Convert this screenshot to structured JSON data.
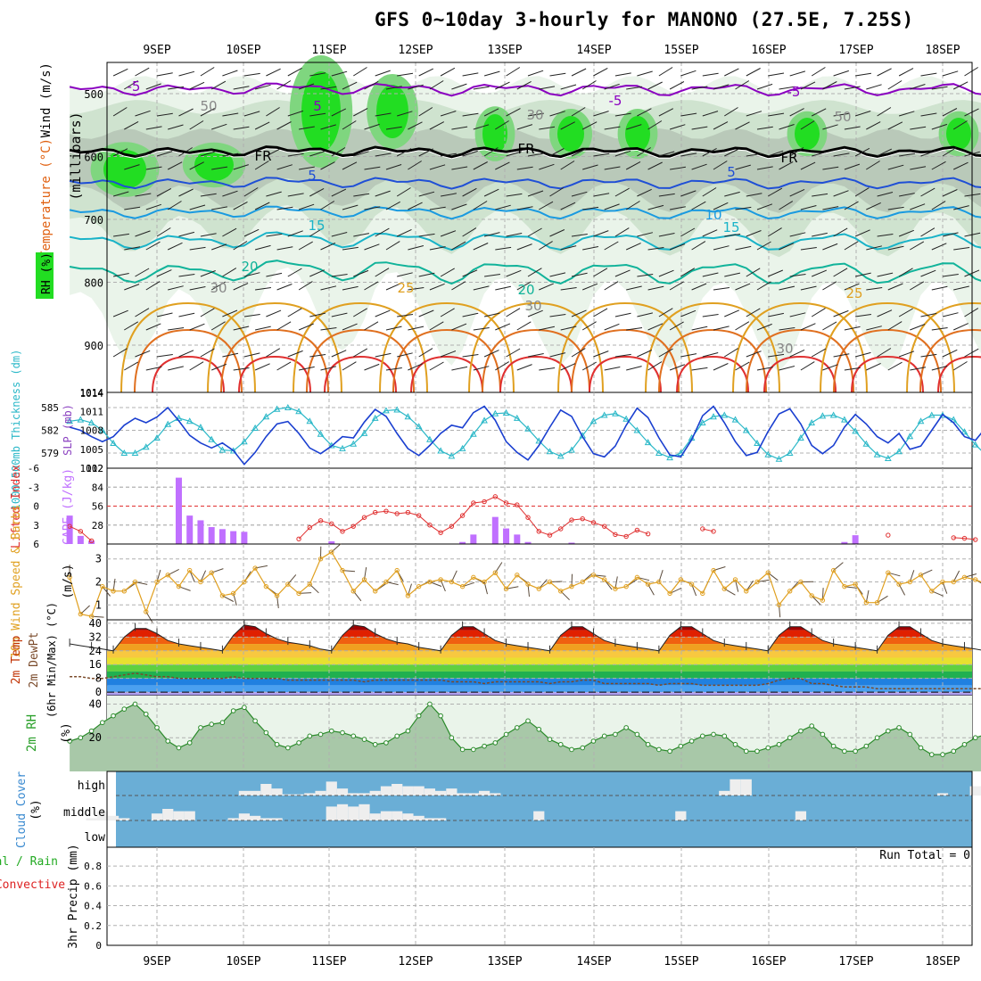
{
  "title": "GFS 0~10day 3-hourly for MANONO (27.5E, 7.25S)",
  "date_labels": [
    "9SEP",
    "10SEP",
    "11SEP",
    "12SEP",
    "13SEP",
    "14SEP",
    "15SEP",
    "16SEP",
    "17SEP",
    "18SEP"
  ],
  "run_total_label": "Run Total = 0",
  "colors": {
    "grid": "#b0b0b0",
    "rh_green": "#22dd22",
    "temp_purple": "#8a00c0",
    "temp_blue": "#1f4fd6",
    "temp_cyan": "#19b3c8",
    "temp_teal": "#11b39a",
    "temp_orange": "#e0a020",
    "temp_red": "#e03030",
    "slp_blue": "#1a3fd0",
    "thickness_cyan": "#2bb8c8",
    "cape_purple": "#c070ff",
    "li_red": "#e03030",
    "wind_orange": "#e0a020",
    "rh2m_green": "#2a8a2a",
    "cloud_blue": "#6aaed6",
    "cloud_white": "#eeeeee",
    "precip_green": "#22aa22",
    "precip_red": "#dd2222"
  },
  "upper_panel": {
    "ylabel_parts": [
      "Wind (m/s)",
      "Temperature (°C)",
      "RH (%)"
    ],
    "ylabel_units": "(millibars)",
    "y_ticks": [
      "500",
      "600",
      "700",
      "800",
      "900",
      "1014"
    ],
    "contour_labels": [
      "-5",
      "-5",
      "-5",
      "5",
      "FR",
      "FR",
      "FR",
      "5",
      "10",
      "15",
      "15",
      "20",
      "20",
      "25",
      "25",
      "30",
      "30",
      "30",
      "30",
      "50",
      "50",
      "5"
    ]
  },
  "slp_panel": {
    "ylabel_left": "1000-500mb Thickness (dm)",
    "ylabel_right": "SLP (mb)",
    "left_ticks": [
      "585",
      "582",
      "579"
    ],
    "right_ticks": [
      "1014",
      "1011",
      "1008",
      "1005",
      "1002"
    ]
  },
  "cape_panel": {
    "ylabel_left": "Lifted Index",
    "ylabel_right": "CAPE (J/kg)",
    "left_ticks": [
      "-6",
      "-3",
      "0",
      "3",
      "6"
    ],
    "right_ticks": [
      "112",
      "84",
      "56",
      "28"
    ]
  },
  "wind_panel": {
    "ylabel": "10m Wind Speed & Barbs",
    "ylabel_units": "(m/s)",
    "ticks": [
      "3",
      "2",
      "1"
    ]
  },
  "temp_panel": {
    "ylabel": "2m Temp 2m DewPt (6hr Min/Max) (°C)",
    "ticks": [
      "40",
      "32",
      "24",
      "16",
      "8",
      "0"
    ]
  },
  "rh_panel": {
    "ylabel": "2m RH",
    "ylabel_units": "(%)",
    "ticks": [
      "40",
      "20"
    ]
  },
  "cloud_panel": {
    "ylabel": "Cloud Cover",
    "ylabel_units": "(%)",
    "levels": [
      "high",
      "middle",
      "low"
    ]
  },
  "precip_panel": {
    "ylabel_left_a": "Total / Rain",
    "ylabel_left_b": "Convective",
    "ylabel": "3hr Precip (mm)",
    "ticks": [
      "0.8",
      "0.6",
      "0.4",
      "0.2",
      "0"
    ]
  },
  "chart_data": [
    {
      "type": "line",
      "title": "1000-500mb Thickness (dm)",
      "ylim": [
        577,
        587
      ],
      "series": [
        {
          "name": "1000-500mb Thickness (dm)",
          "values": [
            583.2,
            583.4,
            583.0,
            582.0,
            580.3,
            579.0,
            579.0,
            579.8,
            581.0,
            582.8,
            583.6,
            583.2,
            582.4,
            580.8,
            579.4,
            579.3,
            580.5,
            582.3,
            583.8,
            584.8,
            585.0,
            584.5,
            583.2,
            581.5,
            580.0,
            579.6,
            580.2,
            581.6,
            583.6,
            584.6,
            584.7,
            583.8,
            582.5,
            580.8,
            579.3,
            578.6,
            579.6,
            581.5,
            583.3,
            584.2,
            584.3,
            583.6,
            582.2,
            580.6,
            579.2,
            578.6,
            579.4,
            581.3,
            583.2,
            584.0,
            584.2,
            583.5,
            582.0,
            580.4,
            579.0,
            578.4,
            579.0,
            581.0,
            583.0,
            583.8,
            584.0,
            583.4,
            582.0,
            580.3,
            578.8,
            578.2,
            579.0,
            581.0,
            583.0,
            583.9,
            584.0,
            583.4,
            581.9,
            580.2,
            578.8,
            578.3,
            579.2,
            581.2,
            583.2,
            584.0,
            584.0,
            583.4,
            581.8,
            580.1,
            578.7,
            578.5
          ]
        }
      ]
    },
    {
      "type": "line",
      "title": "SLP (mb)",
      "ylim": [
        1002,
        1014
      ],
      "series": [
        {
          "name": "SLP (mb)",
          "values": [
            1008.5,
            1008.0,
            1007.0,
            1006.2,
            1007.0,
            1008.8,
            1009.9,
            1009.2,
            1010.1,
            1011.6,
            1009.5,
            1007.2,
            1006.0,
            1005.2,
            1006.0,
            1004.8,
            1002.6,
            1004.5,
            1007.0,
            1009.0,
            1009.4,
            1007.5,
            1005.2,
            1004.3,
            1005.5,
            1007.0,
            1006.8,
            1009.3,
            1011.3,
            1010.2,
            1007.5,
            1005.1,
            1004.0,
            1005.6,
            1007.5,
            1008.8,
            1008.4,
            1010.8,
            1011.8,
            1009.6,
            1006.2,
            1004.5,
            1003.3,
            1005.6,
            1008.5,
            1011.2,
            1010.2,
            1007.0,
            1004.3,
            1003.8,
            1005.5,
            1008.8,
            1011.5,
            1010.0,
            1006.8,
            1004.1,
            1003.8,
            1006.5,
            1010.3,
            1011.8,
            1009.2,
            1006.2,
            1004.0,
            1004.5,
            1007.8,
            1010.6,
            1011.4,
            1009.0,
            1005.6,
            1004.3,
            1005.6,
            1008.5,
            1010.5,
            1009.0,
            1007.0,
            1006.0,
            1007.5,
            1005.0,
            1005.5,
            1008.0,
            1010.5,
            1009.2,
            1007.0,
            1006.4,
            1008.5,
            1011.5
          ]
        }
      ]
    },
    {
      "type": "bar",
      "title": "CAPE (J/kg)",
      "ylim": [
        0,
        112
      ],
      "x_index": [
        0,
        1,
        2,
        10,
        11,
        12,
        13,
        14,
        15,
        16,
        24,
        36,
        37,
        39,
        40,
        41,
        42,
        46,
        71,
        72
      ],
      "values": [
        42,
        12,
        5,
        98,
        42,
        35,
        25,
        22,
        19,
        18,
        4,
        3,
        14,
        40,
        23,
        14,
        3,
        2,
        3,
        13
      ]
    },
    {
      "type": "line",
      "title": "Lifted Index",
      "ylim": [
        -6,
        6
      ],
      "y_inverted": true,
      "series": [
        {
          "name": "Lifted Index",
          "values": [
            3.2,
            4.0,
            5.5,
            6,
            6,
            6,
            6,
            6,
            6,
            6,
            6,
            6,
            6,
            6,
            6,
            6,
            6,
            6,
            6,
            6,
            6,
            5.2,
            3.4,
            2.3,
            2.8,
            4.0,
            3.2,
            1.8,
            1.0,
            0.8,
            1.2,
            1.0,
            1.5,
            3.0,
            4.2,
            3.2,
            1.5,
            -0.5,
            -0.7,
            -1.5,
            -0.5,
            -0.2,
            1.8,
            4.0,
            4.6,
            3.6,
            2.2,
            2.0,
            2.6,
            3.2,
            4.5,
            4.8,
            3.8,
            4.4,
            6,
            6,
            6,
            6,
            3.6,
            4.0,
            6,
            6,
            6,
            6,
            6,
            6,
            6,
            6,
            6,
            6,
            6,
            6,
            6,
            6,
            6,
            4.6,
            6,
            6,
            6,
            6,
            6,
            5.0,
            5.1,
            5.3,
            6,
            6
          ]
        }
      ]
    },
    {
      "type": "line",
      "title": "10m Wind Speed (m/s)",
      "ylim": [
        0.5,
        3.5
      ],
      "series": [
        {
          "name": "10m Wind Speed (m/s)",
          "values": [
            2.2,
            0.6,
            0.5,
            1.8,
            1.6,
            1.6,
            2.0,
            0.7,
            2.0,
            2.3,
            1.8,
            2.5,
            2.0,
            2.4,
            1.4,
            1.5,
            2.0,
            2.6,
            1.8,
            1.4,
            1.9,
            1.5,
            1.9,
            3.0,
            3.3,
            2.5,
            1.6,
            2.1,
            1.6,
            2.0,
            2.5,
            1.4,
            1.8,
            2.0,
            2.1,
            2.0,
            1.8,
            2.2,
            2.0,
            2.4,
            1.7,
            2.3,
            1.9,
            1.7,
            2.0,
            1.6,
            1.8,
            2.0,
            2.3,
            2.1,
            1.7,
            1.8,
            2.2,
            1.9,
            2.0,
            1.5,
            2.1,
            1.9,
            1.5,
            2.5,
            1.7,
            2.1,
            1.6,
            2.0,
            2.4,
            1.0,
            1.6,
            2.0,
            1.4,
            1.2,
            2.5,
            1.8,
            1.9,
            1.1,
            1.1,
            2.4,
            1.9,
            2.0,
            2.3,
            1.6,
            2.0,
            2.0,
            2.2,
            2.1,
            1.9,
            2.4
          ]
        }
      ]
    },
    {
      "type": "area",
      "title": "2m Temp (°C)",
      "ylim": [
        0,
        40
      ],
      "series": [
        {
          "name": "2m Temp (°C)",
          "values": [
            28,
            27,
            26,
            25,
            24,
            32,
            37,
            37,
            34,
            30,
            28,
            27,
            26,
            25,
            24,
            33,
            39,
            38,
            34,
            31,
            29,
            28,
            27,
            25,
            24,
            33,
            39,
            38,
            34,
            31,
            29,
            28,
            26,
            25,
            24,
            33,
            38,
            38,
            34,
            30,
            28,
            27,
            26,
            25,
            24,
            33,
            38,
            38,
            34,
            30,
            28,
            27,
            26,
            25,
            24,
            33,
            38,
            38,
            34,
            30,
            28,
            27,
            26,
            25,
            24,
            33,
            38,
            38,
            34,
            30,
            28,
            27,
            26,
            25,
            24,
            33,
            38,
            38,
            34,
            30,
            28,
            27,
            26,
            25,
            24,
            28
          ]
        },
        {
          "name": "2m DewPt (°C)",
          "values": [
            9,
            9,
            8,
            8,
            9,
            10,
            11,
            10,
            9,
            9,
            8,
            8,
            8,
            8,
            8,
            9,
            8,
            8,
            8,
            8,
            7,
            7,
            7,
            7,
            7,
            7,
            7,
            6,
            7,
            7,
            7,
            7,
            7,
            7,
            7,
            6,
            6,
            6,
            5,
            6,
            6,
            6,
            6,
            6,
            5,
            6,
            6,
            7,
            7,
            5,
            5,
            5,
            5,
            5,
            4,
            5,
            5,
            5,
            4,
            4,
            4,
            4,
            4,
            4,
            5,
            7,
            8,
            8,
            5,
            5,
            4,
            3,
            3,
            3,
            2,
            2,
            2,
            2,
            2,
            2,
            2,
            2,
            2,
            2,
            2,
            2
          ]
        }
      ]
    },
    {
      "type": "area",
      "title": "2m RH (%)",
      "ylim": [
        0,
        45
      ],
      "series": [
        {
          "name": "2m RH (%)",
          "values": [
            18,
            20,
            24,
            29,
            33,
            37,
            40,
            34,
            26,
            18,
            14,
            17,
            26,
            28,
            29,
            36,
            38,
            30,
            23,
            16,
            14,
            17,
            21,
            22,
            24,
            23,
            21,
            19,
            16,
            17,
            21,
            24,
            33,
            40,
            33,
            20,
            13,
            13,
            15,
            17,
            22,
            26,
            30,
            25,
            19,
            16,
            13,
            14,
            18,
            21,
            22,
            26,
            22,
            16,
            13,
            12,
            15,
            18,
            21,
            22,
            21,
            16,
            12,
            12,
            14,
            16,
            20,
            24,
            27,
            22,
            15,
            12,
            12,
            15,
            20,
            24,
            26,
            22,
            14,
            10,
            10,
            12,
            16,
            20,
            22,
            18
          ]
        }
      ]
    },
    {
      "type": "bar",
      "title": "Cloud Cover (%)",
      "series": [
        {
          "name": "high",
          "values": [
            0,
            0,
            0,
            0,
            0,
            0,
            0,
            0,
            0,
            0,
            0,
            0,
            0,
            0,
            0,
            0,
            20,
            20,
            50,
            30,
            5,
            5,
            10,
            20,
            60,
            30,
            10,
            10,
            20,
            40,
            50,
            40,
            40,
            30,
            20,
            30,
            10,
            10,
            20,
            10,
            0,
            0,
            0,
            0,
            0,
            0,
            0,
            0,
            0,
            0,
            0,
            0,
            0,
            0,
            0,
            0,
            0,
            0,
            0,
            0,
            20,
            70,
            70,
            0,
            0,
            0,
            0,
            0,
            0,
            0,
            0,
            0,
            0,
            0,
            0,
            0,
            0,
            0,
            0,
            0,
            10,
            0,
            0,
            40,
            0,
            0
          ]
        },
        {
          "name": "middle",
          "values": [
            0,
            0,
            10,
            40,
            20,
            10,
            0,
            0,
            30,
            50,
            40,
            40,
            0,
            0,
            0,
            10,
            30,
            20,
            10,
            10,
            0,
            0,
            0,
            0,
            60,
            70,
            60,
            70,
            30,
            40,
            40,
            30,
            20,
            10,
            10,
            0,
            0,
            0,
            0,
            0,
            0,
            0,
            0,
            40,
            0,
            0,
            0,
            0,
            0,
            0,
            0,
            0,
            0,
            0,
            0,
            0,
            40,
            0,
            0,
            0,
            0,
            0,
            0,
            0,
            0,
            0,
            0,
            40,
            0,
            0,
            0,
            0,
            0,
            0,
            0,
            0,
            0,
            0,
            0,
            0,
            0,
            0,
            0,
            0,
            0,
            0
          ]
        }
      ]
    },
    {
      "type": "bar",
      "title": "3hr Precip (mm)",
      "ylim": [
        0,
        1
      ],
      "values": []
    }
  ]
}
